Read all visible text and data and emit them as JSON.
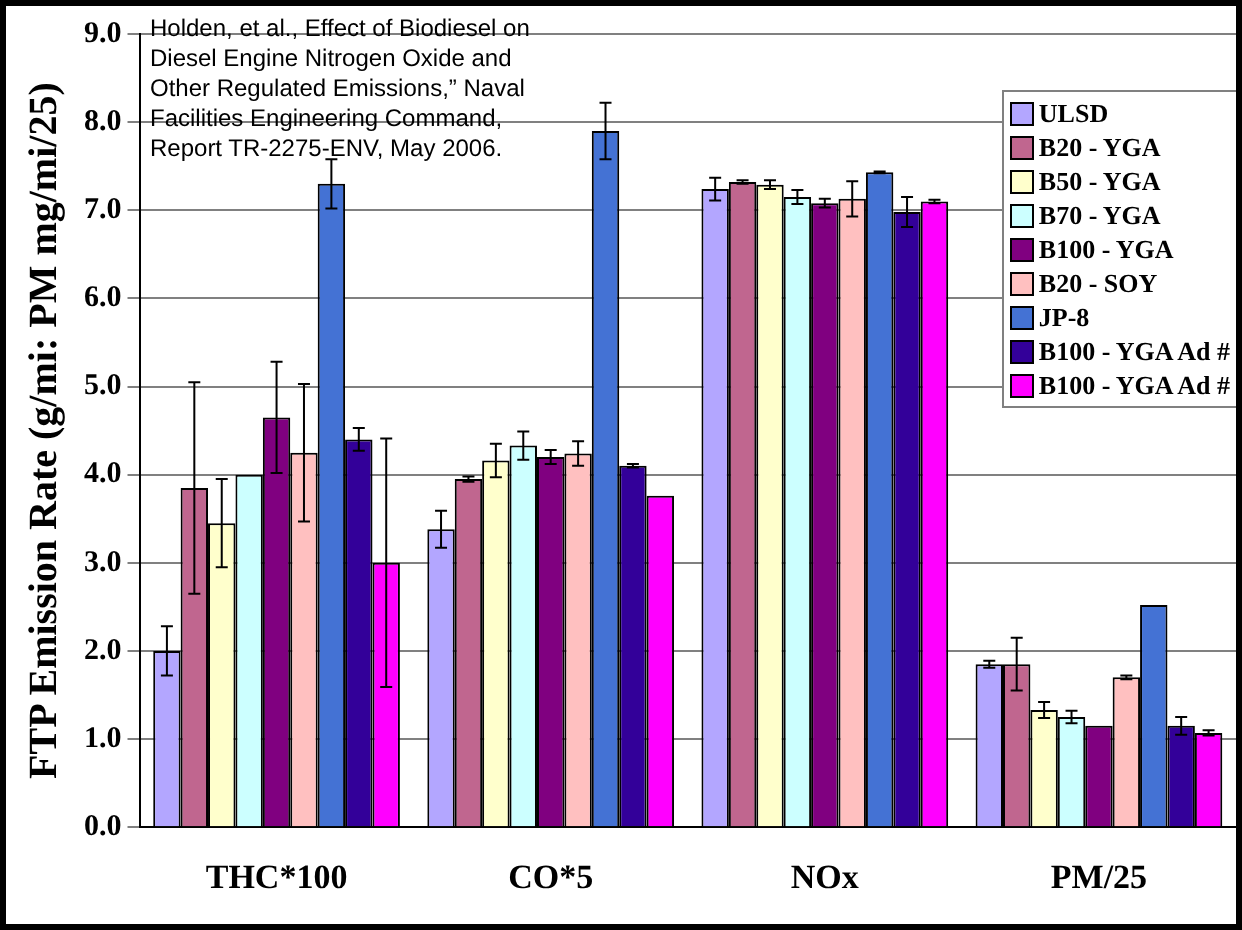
{
  "chart_data": {
    "type": "bar",
    "ylabel": "FTP Emission Rate (g/mi: PM mg/mi/25)",
    "annotations": [
      "Holden, et al., Effect of Biodiesel on Diesel Engine Nitrogen Oxide and Other Regulated Emissions,” Naval Facilities Engineering Command, Report TR-2275-ENV, May 2006."
    ],
    "categories": [
      "THC*100",
      "CO*5",
      "NOx",
      "PM/25"
    ],
    "ylim": [
      0,
      9
    ],
    "yticks": [
      {
        "value": 0,
        "label": "0.0"
      },
      {
        "value": 1,
        "label": "1.0"
      },
      {
        "value": 2,
        "label": "2.0"
      },
      {
        "value": 3,
        "label": "3.0"
      },
      {
        "value": 4,
        "label": "4.0"
      },
      {
        "value": 5,
        "label": "5.0"
      },
      {
        "value": 6,
        "label": "6.0"
      },
      {
        "value": 7,
        "label": "7.0"
      },
      {
        "value": 8,
        "label": "8.0"
      },
      {
        "value": 9,
        "label": "9.0"
      }
    ],
    "grid": "y",
    "legend": "top right",
    "series": [
      {
        "name": "ULSD",
        "color": "#b3a6ff",
        "values": [
          2.0,
          3.38,
          7.24,
          1.85
        ],
        "errors": [
          0.28,
          0.21,
          0.13,
          0.04
        ]
      },
      {
        "name": "B20 - YGA",
        "color": "#c0668f",
        "values": [
          3.85,
          3.95,
          7.32,
          1.85
        ],
        "errors": [
          1.2,
          0.03,
          0.02,
          0.3
        ]
      },
      {
        "name": "B50 - YGA",
        "color": "#ffffcc",
        "values": [
          3.45,
          4.16,
          7.29,
          1.33
        ],
        "errors": [
          0.5,
          0.19,
          0.05,
          0.09
        ]
      },
      {
        "name": "B70 - YGA",
        "color": "#ccffff",
        "values": [
          4.0,
          4.33,
          7.15,
          1.25
        ],
        "errors": [
          null,
          0.16,
          0.08,
          0.07
        ]
      },
      {
        "name": "B100 - YGA",
        "color": "#800080",
        "values": [
          4.65,
          4.2,
          7.08,
          1.15
        ],
        "errors": [
          0.63,
          0.08,
          0.05,
          null
        ]
      },
      {
        "name": "B20 - SOY",
        "color": "#ffc0c0",
        "values": [
          4.25,
          4.24,
          7.13,
          1.7
        ],
        "errors": [
          0.78,
          0.14,
          0.2,
          0.02
        ]
      },
      {
        "name": "JP-8",
        "color": "#4472d4",
        "values": [
          7.3,
          7.9,
          7.43,
          2.52
        ],
        "errors": [
          0.28,
          0.32,
          0.01,
          null
        ]
      },
      {
        "name": "B100 - YGA Ad #",
        "color": "#330099",
        "values": [
          4.4,
          4.1,
          6.98,
          1.15
        ],
        "errors": [
          0.13,
          0.02,
          0.17,
          0.1
        ]
      },
      {
        "name": "B100 - YGA Ad #",
        "color": "#ff00ff",
        "values": [
          3.0,
          3.76,
          7.1,
          1.07
        ],
        "errors": [
          1.41,
          null,
          0.02,
          0.03
        ]
      }
    ]
  }
}
